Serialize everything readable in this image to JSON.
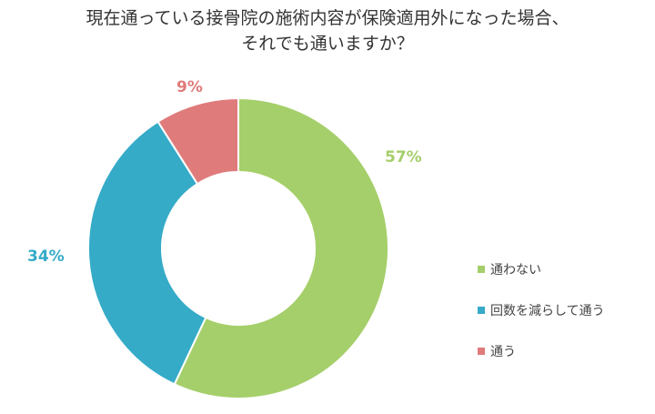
{
  "chart_data": {
    "type": "pie",
    "subtype": "donut",
    "title": "現在通っている接骨院の施術内容が保険適用外になった場合、それでも通いますか？",
    "title_lines": [
      "現在通っている接骨院の施術内容が保険適用外になった場合、",
      "それでも通いますか？"
    ],
    "categories": [
      "通わない",
      "回数を減らして通う",
      "通う"
    ],
    "values": [
      57,
      34,
      9
    ],
    "unit": "%",
    "labels": [
      "57%",
      "34%",
      "9%"
    ],
    "colors": [
      "#a5cf6a",
      "#35abc8",
      "#e07b7b"
    ],
    "start_angle_deg": 0,
    "direction": "clockwise",
    "legend_position": "right"
  },
  "title": {
    "line1": "現在通っている接骨院の施術内容が保険適用外になった場合、",
    "line2": "それでも通いますか？"
  },
  "labels": {
    "green": "57%",
    "blue": "34%",
    "red": "9%"
  },
  "legend": {
    "items": [
      {
        "label": "通わない",
        "color": "#a5cf6a"
      },
      {
        "label": "回数を減らして通う",
        "color": "#35abc8"
      },
      {
        "label": "通う",
        "color": "#e07b7b"
      }
    ]
  }
}
